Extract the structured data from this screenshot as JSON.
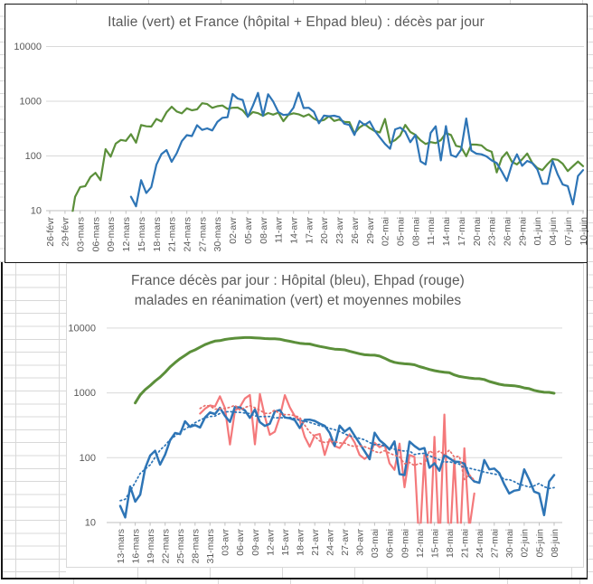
{
  "app": {
    "description": "Spreadsheet screenshot with two log-scale line charts of daily COVID-19 deaths (Italy / France, spring 2020)"
  },
  "colors": {
    "italie_green": "#5B8F3A",
    "france_blue": "#2E75B6",
    "ehpad_red": "#F4797B",
    "trend_blue": "#2E75B6",
    "trend_red": "#E8706C",
    "gridline": "#D9D9D9",
    "axis": "#BFBFBF",
    "text": "#595959",
    "frame": "#151515",
    "cell_grid": "#D8D8D8"
  },
  "chart_data": [
    {
      "type": "line",
      "title": "Italie (vert) et France (hôpital + Ehpad bleu) : décès par jour",
      "y_scale": "log",
      "ylim": [
        10,
        10000
      ],
      "y_ticks": [
        "10",
        "100",
        "1000",
        "10000"
      ],
      "grid": "horizontal",
      "legend": "none (colors named in title)",
      "x_tick_interval_days": 3,
      "x_labels": [
        "26-févr",
        "29-févr",
        "03-mars",
        "06-mars",
        "09-mars",
        "12-mars",
        "15-mars",
        "18-mars",
        "21-mars",
        "24-mars",
        "27-mars",
        "30-mars",
        "02-avr",
        "05-avr",
        "08-avr",
        "11-avr",
        "14-avr",
        "17-avr",
        "20-avr",
        "23-avr",
        "26-avr",
        "29-avr",
        "02-mai",
        "05-mai",
        "08-mai",
        "11-mai",
        "14-mai",
        "17-mai",
        "20-mai",
        "23-mai",
        "26-mai",
        "29-mai",
        "01-juin",
        "04-juin",
        "07-juin",
        "10-juin"
      ],
      "series": [
        {
          "name": "Italie décès par jour",
          "color": "#5B8F3A",
          "width": 2.2,
          "dashed": false,
          "start_day_index": 2,
          "start_date": "28-févr",
          "values": [
            4,
            8,
            5,
            18,
            27,
            28,
            41,
            49,
            36,
            133,
            97,
            168,
            196,
            189,
            250,
            175,
            368,
            349,
            345,
            475,
            427,
            627,
            793,
            651,
            601,
            743,
            683,
            712,
            919,
            889,
            756,
            812,
            837,
            727,
            760,
            766,
            681,
            525,
            636,
            604,
            542,
            610,
            570,
            619,
            431,
            566,
            602,
            578,
            525,
            575,
            482,
            433,
            454,
            534,
            437,
            464,
            420,
            415,
            260,
            333,
            382,
            323,
            285,
            269,
            474,
            174,
            195,
            236,
            369,
            274,
            243,
            194,
            165,
            179,
            172,
            195,
            262,
            242,
            153,
            145,
            99,
            162,
            161,
            156,
            130,
            119,
            50,
            92,
            117,
            78,
            70,
            87,
            111,
            75,
            60,
            55,
            71,
            88,
            85,
            72,
            53,
            65,
            79,
            65
          ]
        },
        {
          "name": "France hôpital + Ehpad décès par jour",
          "color": "#2E75B6",
          "width": 2.2,
          "dashed": false,
          "start_day_index": 16,
          "start_date": "13-mars",
          "values": [
            18,
            12,
            36,
            21,
            27,
            69,
            108,
            128,
            78,
            112,
            186,
            240,
            231,
            365,
            299,
            319,
            292,
            418,
            499,
            509,
            1355,
            1120,
            1053,
            518,
            833,
            1417,
            541,
            1341,
            987,
            635,
            561,
            574,
            762,
            1438,
            753,
            761,
            642,
            395,
            547,
            531,
            544,
            516,
            389,
            369,
            242,
            437,
            367,
            427,
            289,
            218,
            166,
            135,
            306,
            330,
            278,
            178,
            243,
            80,
            70,
            263,
            348,
            83,
            351,
            104,
            96,
            130,
            483,
            125,
            110,
            107,
            98,
            83,
            74,
            52,
            35,
            70,
            107,
            66,
            81,
            74,
            57,
            31,
            31,
            81,
            46,
            30,
            28,
            13,
            43,
            55
          ]
        }
      ]
    },
    {
      "type": "line",
      "title_line1": "France décès par jour : Hôpital (bleu), Ehpad (rouge)",
      "title_line2": "malades en réanimation (vert) et moyennes mobiles",
      "y_scale": "log",
      "ylim": [
        10,
        10000
      ],
      "y_ticks": [
        "10",
        "100",
        "1000",
        "10000"
      ],
      "grid": "horizontal",
      "legend": "none (colors named in title)",
      "x_tick_interval_days": 3,
      "x_labels": [
        "13-mars",
        "16-mars",
        "19-mars",
        "22-mars",
        "25-mars",
        "28-mars",
        "31-mars",
        "03-avr",
        "06-avr",
        "09-avr",
        "12-avr",
        "15-avr",
        "18-avr",
        "21-avr",
        "24-avr",
        "27-avr",
        "30-avr",
        "03-mai",
        "06-mai",
        "09-mai",
        "12-mai",
        "15-mai",
        "18-mai",
        "21-mai",
        "24-mai",
        "27-mai",
        "30-mai",
        "02-juin",
        "05-juin",
        "08-juin"
      ],
      "series": [
        {
          "name": "malades en réanimation",
          "color": "#5B8F3A",
          "width": 3,
          "dashed": false,
          "start_day_index": 3,
          "start_date": "16-mars",
          "values": [
            700,
            931,
            1122,
            1297,
            1525,
            1746,
            2082,
            2516,
            2935,
            3375,
            3787,
            4273,
            4611,
            5056,
            5565,
            5940,
            6305,
            6399,
            6662,
            6838,
            6978,
            7072,
            7131,
            7148,
            7066,
            7004,
            6883,
            6845,
            6821,
            6730,
            6457,
            6248,
            6027,
            5833,
            5744,
            5683,
            5433,
            5218,
            5053,
            4870,
            4725,
            4682,
            4608,
            4387,
            4207,
            4019,
            3878,
            3827,
            3819,
            3696,
            3430,
            3147,
            2961,
            2868,
            2812,
            2776,
            2712,
            2542,
            2428,
            2299,
            2203,
            2132,
            2087,
            2053,
            1894,
            1794,
            1745,
            1701,
            1665,
            1655,
            1609,
            1501,
            1429,
            1361,
            1319,
            1302,
            1288,
            1253,
            1192,
            1163,
            1094,
            1053,
            1024,
            1018,
            988
          ]
        },
        {
          "name": "Ehpad décès par jour",
          "color": "#F4797B",
          "width": 2.2,
          "dashed": false,
          "start_day_index": 16,
          "start_date": "29-mars",
          "values": [
            480,
            570,
            640,
            615,
            884,
            580,
            160,
            531,
            606,
            820,
            929,
            161,
            960,
            433,
            225,
            251,
            427,
            924,
            599,
            438,
            378,
            209,
            148,
            222,
            233,
            110,
            194,
            152,
            141,
            182,
            230,
            172,
            110,
            96,
            110,
            170,
            145,
            161,
            82,
            65,
            165,
            35,
            110,
            103,
            4,
            110,
            3,
            210,
            4,
            463,
            3,
            95,
            3,
            140,
            8,
            28
          ]
        },
        {
          "name": "Hôpital décès par jour",
          "color": "#2E75B6",
          "width": 2.5,
          "dashed": false,
          "start_day_index": 0,
          "start_date": "13-mars",
          "values": [
            18,
            12,
            36,
            21,
            27,
            69,
            108,
            128,
            78,
            112,
            186,
            240,
            231,
            365,
            299,
            319,
            292,
            418,
            499,
            471,
            588,
            441,
            357,
            605,
            597,
            537,
            412,
            554,
            353,
            310,
            335,
            514,
            544,
            417,
            405,
            380,
            288,
            384,
            387,
            369,
            336,
            311,
            242,
            152,
            313,
            253,
            289,
            218,
            166,
            126,
            95,
            243,
            186,
            161,
            134,
            178,
            56,
            54,
            177,
            152,
            134,
            141,
            70,
            82,
            63,
            110,
            98,
            87,
            86,
            81,
            52,
            43,
            41,
            92,
            66,
            68,
            58,
            39,
            28,
            31,
            32,
            66,
            46,
            30,
            28,
            13,
            43,
            54
          ]
        }
      ],
      "trendlines": [
        {
          "name": "moyenne mobile Ehpad",
          "source_series": 1,
          "color": "#E8706C",
          "dashed": true
        },
        {
          "name": "moyenne mobile Hôpital",
          "source_series": 2,
          "color": "#2E75B6",
          "dashed": true
        }
      ]
    }
  ]
}
